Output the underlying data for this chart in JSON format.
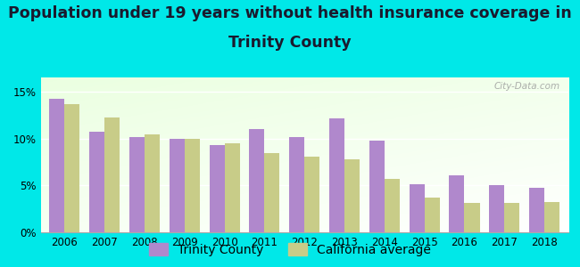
{
  "title_line1": "Population under 19 years without health insurance coverage in",
  "title_line2": "Trinity County",
  "years": [
    2006,
    2007,
    2008,
    2009,
    2010,
    2011,
    2012,
    2013,
    2014,
    2015,
    2016,
    2017,
    2018
  ],
  "trinity": [
    14.2,
    10.7,
    10.1,
    10.0,
    9.3,
    11.0,
    10.1,
    12.1,
    9.8,
    5.1,
    6.1,
    5.0,
    4.7
  ],
  "california": [
    13.7,
    12.2,
    10.4,
    10.0,
    9.5,
    8.4,
    8.1,
    7.8,
    5.7,
    3.7,
    3.1,
    3.1,
    3.2
  ],
  "trinity_color": "#b088cc",
  "california_color": "#c8cc88",
  "bg_color": "#00e8e8",
  "ylim": [
    0,
    16.5
  ],
  "yticks": [
    0,
    5,
    10,
    15
  ],
  "ytick_labels": [
    "0%",
    "5%",
    "10%",
    "15%"
  ],
  "bar_width": 0.38,
  "title_fontsize": 12.5,
  "legend_fontsize": 10,
  "watermark": "City-Data.com",
  "title_color": "#1a1a2e"
}
